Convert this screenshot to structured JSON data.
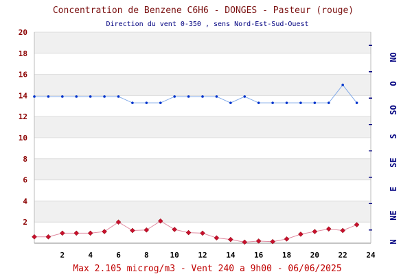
{
  "chart_data": {
    "type": "line",
    "title": "Concentration de Benzene C6H6  -   DONGES - Pasteur (rouge)",
    "subtitle": "Direction du vent 0-350 , sens Nord-Est-Sud-Ouest",
    "footer": "Max 2.105 microg/m3 - Vent 240  a 9h00 - 06/06/2025",
    "xlim": [
      0,
      24
    ],
    "ylim": [
      0,
      20
    ],
    "x_ticks": [
      "2",
      "4",
      "6",
      "8",
      "10",
      "12",
      "14",
      "16",
      "18",
      "20",
      "22",
      "24"
    ],
    "y_ticks": [
      "2",
      "4",
      "6",
      "8",
      "10",
      "12",
      "14",
      "16",
      "18",
      "20"
    ],
    "y2_ticks": [
      "N",
      "NE",
      "E",
      "SE",
      "S",
      "SO",
      "O",
      "NO"
    ],
    "grid": true,
    "series": [
      {
        "color": "#c8102e",
        "line_color": "#e08aa0",
        "marker": "diamond",
        "x": [
          0,
          1,
          2,
          3,
          4,
          5,
          6,
          7,
          8,
          9,
          10,
          11,
          12,
          13,
          14,
          15,
          16,
          17,
          18,
          19,
          20,
          21,
          22,
          23
        ],
        "values": [
          0.6,
          0.6,
          0.95,
          0.95,
          0.95,
          1.1,
          2.0,
          1.2,
          1.25,
          2.1,
          1.3,
          1.0,
          0.95,
          0.5,
          0.35,
          0.1,
          0.2,
          0.15,
          0.4,
          0.85,
          1.1,
          1.35,
          1.2,
          1.75
        ]
      },
      {
        "color": "#0033cc",
        "line_color": "#7fa8e8",
        "marker": "circle",
        "x": [
          0,
          1,
          2,
          3,
          4,
          5,
          6,
          7,
          8,
          9,
          10,
          11,
          12,
          13,
          14,
          15,
          16,
          17,
          18,
          19,
          20,
          21,
          22,
          23
        ],
        "values": [
          13.9,
          13.9,
          13.9,
          13.9,
          13.9,
          13.9,
          13.9,
          13.3,
          13.3,
          13.3,
          13.9,
          13.9,
          13.9,
          13.9,
          13.3,
          13.9,
          13.3,
          13.3,
          13.3,
          13.3,
          13.3,
          13.3,
          15.0,
          13.3
        ]
      }
    ]
  }
}
